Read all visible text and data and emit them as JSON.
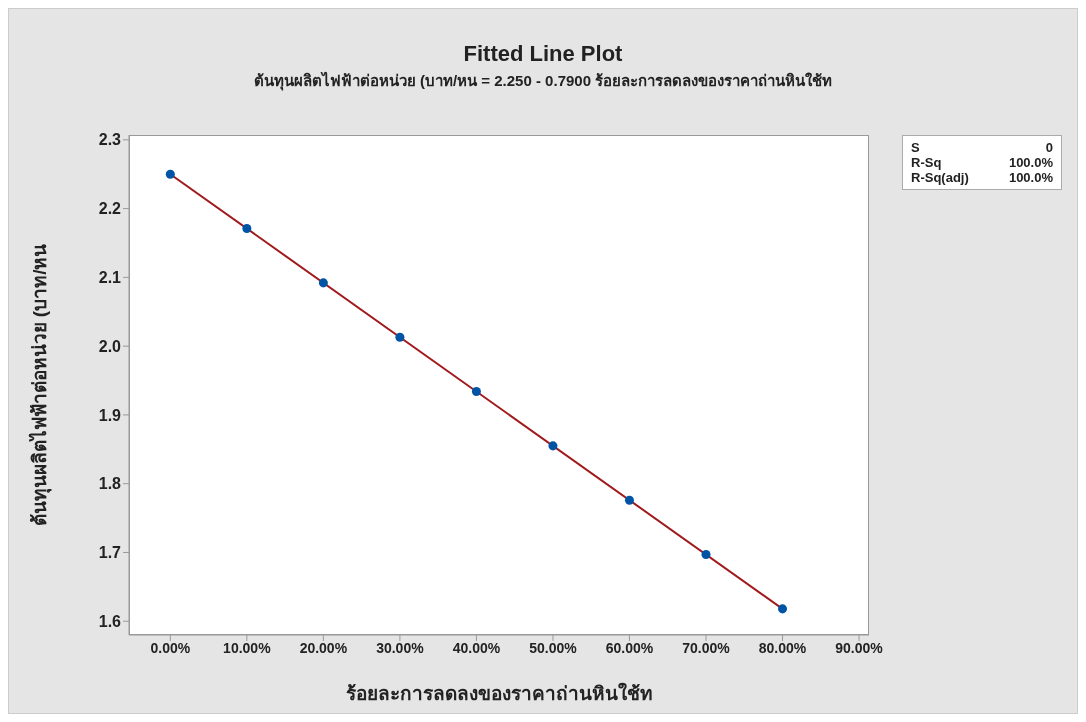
{
  "chart_data": {
    "type": "scatter",
    "title": "Fitted Line Plot",
    "subtitle": "ต้นทุนผลิตไฟฟ้าต่อหน่วย (บาท/หน = 2.250 - 0.7900 ร้อยละการลดลงของราคาถ่านหินใช้ท",
    "xlabel": "ร้อยละการลดลงของราคาถ่านหินใช้ท",
    "ylabel": "ต้นทุนผลิตไฟฟ้าต่อหน่วย (บาท/หน",
    "x": [
      0,
      10,
      20,
      30,
      40,
      50,
      60,
      70,
      80
    ],
    "series": [
      {
        "type": "scatter",
        "color": "#0054a6",
        "marker": "circle",
        "values": [
          2.25,
          2.171,
          2.092,
          2.013,
          1.934,
          1.855,
          1.776,
          1.697,
          1.618
        ]
      },
      {
        "type": "line",
        "color": "#a0191c",
        "marker": "none",
        "x": [
          0,
          80
        ],
        "values": [
          2.25,
          1.618
        ]
      }
    ],
    "xlim": [
      -5.4,
      91.3
    ],
    "xticks": [
      {
        "value": 0,
        "label": "0.00%"
      },
      {
        "value": 10,
        "label": "10.00%"
      },
      {
        "value": 20,
        "label": "20.00%"
      },
      {
        "value": 30,
        "label": "30.00%"
      },
      {
        "value": 40,
        "label": "40.00%"
      },
      {
        "value": 50,
        "label": "50.00%"
      },
      {
        "value": 60,
        "label": "60.00%"
      },
      {
        "value": 70,
        "label": "70.00%"
      },
      {
        "value": 80,
        "label": "80.00%"
      },
      {
        "value": 90,
        "label": "90.00%"
      }
    ],
    "ylim": [
      1.58,
      2.307
    ],
    "yticks": [
      1.6,
      1.7,
      1.8,
      1.9,
      {
        "value": 2,
        "label": "2.0"
      },
      2.1,
      2.2,
      2.3
    ],
    "grid": false,
    "legend": false,
    "annotations": [
      "S",
      "0",
      "R-Sq",
      "100.0%",
      "R-Sq(adj)",
      "100.0%"
    ]
  }
}
